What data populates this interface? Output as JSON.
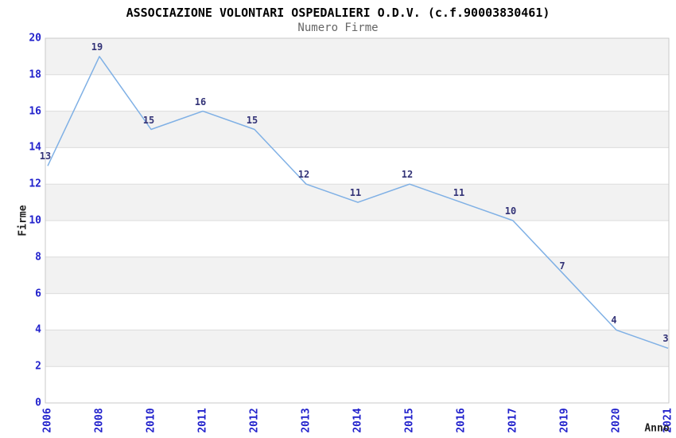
{
  "chart_data": {
    "type": "line",
    "title": "ASSOCIAZIONE VOLONTARI OSPEDALIERI O.D.V. (c.f.90003830461)",
    "subtitle": "Numero Firme",
    "xlabel": "Anno",
    "ylabel": "Firme",
    "categories": [
      "2006",
      "2008",
      "2010",
      "2011",
      "2012",
      "2013",
      "2014",
      "2015",
      "2016",
      "2017",
      "2019",
      "2020",
      "2021"
    ],
    "values": [
      13,
      19,
      15,
      16,
      15,
      12,
      11,
      12,
      11,
      10,
      7,
      4,
      3
    ],
    "ylim": [
      0,
      20
    ],
    "ytick_step": 2,
    "grid": true,
    "legend_position": "none",
    "colors": {
      "line": "#7fb0e5",
      "tick_labels": "#2222cc",
      "value_labels": "#333377",
      "band_dark": "#f2f2f2",
      "band_light": "#ffffff",
      "gridline": "#dcdcdc",
      "plot_border": "#c9c9c9",
      "title": "#000000",
      "subtitle": "#666666",
      "axis_title": "#222222"
    }
  }
}
